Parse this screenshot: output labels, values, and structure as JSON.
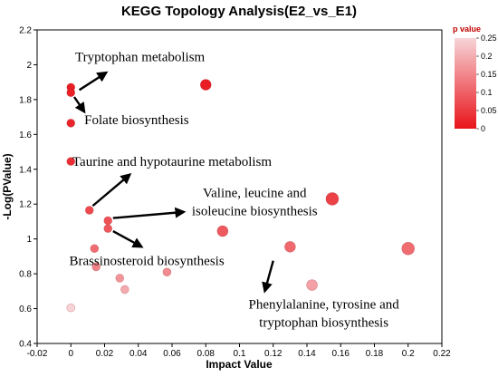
{
  "chart_data": {
    "type": "scatter",
    "title": "KEGG Topology Analysis(E2_vs_E1)",
    "xlabel": "Impact Value",
    "ylabel": "-Log(PValue)",
    "xlim": [
      -0.02,
      0.22
    ],
    "ylim": [
      0.4,
      2.2
    ],
    "xticks": [
      "-0.02",
      "0",
      "0.02",
      "0.04",
      "0.06",
      "0.08",
      "0.1",
      "0.12",
      "0.14",
      "0.16",
      "0.18",
      "0.2",
      "0.22"
    ],
    "yticks": [
      "0.4",
      "0.6",
      "0.8",
      "1",
      "1.2",
      "1.4",
      "1.6",
      "1.8",
      "2",
      "2.2"
    ],
    "grid": false,
    "legend": {
      "title": "p value",
      "placement": "top-right",
      "type": "color-gradient",
      "min": 0,
      "max": 0.25,
      "ticks": [
        "0.25",
        "0.2",
        "0.15",
        "0.1",
        "0.05",
        "0"
      ],
      "color_low": "#e8141a",
      "color_high": "#f7d4d8"
    },
    "points": [
      {
        "x": 0.0,
        "y": 1.87,
        "p": 0.013,
        "size": "small"
      },
      {
        "x": 0.0,
        "y": 1.84,
        "p": 0.015,
        "size": "small"
      },
      {
        "x": 0.0,
        "y": 1.665,
        "p": 0.022,
        "size": "small"
      },
      {
        "x": 0.0,
        "y": 1.445,
        "p": 0.036,
        "size": "small"
      },
      {
        "x": 0.0,
        "y": 0.605,
        "p": 0.248,
        "size": "small"
      },
      {
        "x": 0.08,
        "y": 1.885,
        "p": 0.013,
        "size": "medium"
      },
      {
        "x": 0.011,
        "y": 1.165,
        "p": 0.068,
        "size": "small"
      },
      {
        "x": 0.022,
        "y": 1.105,
        "p": 0.078,
        "size": "small"
      },
      {
        "x": 0.022,
        "y": 1.06,
        "p": 0.087,
        "size": "small"
      },
      {
        "x": 0.014,
        "y": 0.945,
        "p": 0.114,
        "size": "small"
      },
      {
        "x": 0.015,
        "y": 0.84,
        "p": 0.145,
        "size": "small"
      },
      {
        "x": 0.029,
        "y": 0.775,
        "p": 0.168,
        "size": "small"
      },
      {
        "x": 0.032,
        "y": 0.71,
        "p": 0.195,
        "size": "small"
      },
      {
        "x": 0.057,
        "y": 0.81,
        "p": 0.155,
        "size": "small"
      },
      {
        "x": 0.09,
        "y": 1.045,
        "p": 0.09,
        "size": "medium"
      },
      {
        "x": 0.13,
        "y": 0.955,
        "p": 0.111,
        "size": "medium"
      },
      {
        "x": 0.143,
        "y": 0.735,
        "p": 0.184,
        "size": "medium"
      },
      {
        "x": 0.155,
        "y": 1.23,
        "p": 0.059,
        "size": "large"
      },
      {
        "x": 0.2,
        "y": 0.945,
        "p": 0.114,
        "size": "large"
      }
    ],
    "annotations": [
      {
        "lines": [
          "Tryptophan metabolism"
        ],
        "text_x": 0.041,
        "text_y": 2.02
      },
      {
        "lines": [
          "Folate biosynthesis"
        ],
        "text_x": 0.039,
        "text_y": 1.66
      },
      {
        "lines": [
          "Taurine and hypotaurine metabolism"
        ],
        "text_x": 0.06,
        "text_y": 1.42
      },
      {
        "lines": [
          "Valine, leucine and",
          "isoleucine biosynthesis"
        ],
        "text_x": 0.109,
        "text_y": 1.24
      },
      {
        "lines": [
          "Brassinosteroid biosynthesis"
        ],
        "text_x": 0.045,
        "text_y": 0.85
      },
      {
        "lines": [
          "Phenylalanine, tyrosine and",
          "tryptophan biosynthesis"
        ],
        "text_x": 0.15,
        "text_y": 0.6
      }
    ],
    "arrows": [
      {
        "from": [
          0.005,
          1.855
        ],
        "to": [
          0.021,
          1.955
        ]
      },
      {
        "from": [
          0.002,
          1.815
        ],
        "to": [
          0.008,
          1.73
        ]
      },
      {
        "from": [
          0.013,
          1.19
        ],
        "to": [
          0.035,
          1.37
        ]
      },
      {
        "from": [
          0.025,
          1.12
        ],
        "to": [
          0.067,
          1.155
        ]
      },
      {
        "from": [
          0.025,
          1.045
        ],
        "to": [
          0.042,
          0.955
        ]
      },
      {
        "from": [
          0.12,
          0.875
        ],
        "to": [
          0.115,
          0.7
        ]
      }
    ]
  }
}
